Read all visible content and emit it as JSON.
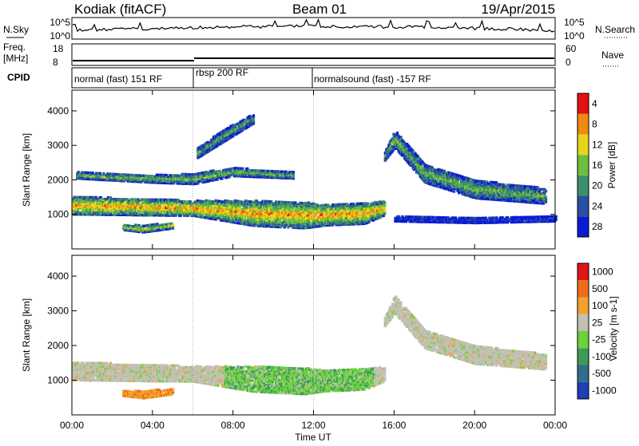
{
  "header": {
    "station": "Kodiak (fitACF)",
    "beam": "Beam 01",
    "date": "19/Apr/2015"
  },
  "top_panels": {
    "nsky_label": "N.Sky",
    "nsearch_label": "N.Search",
    "freq_label_1": "Freq.",
    "freq_label_2": "[MHz]",
    "nave_label": "Nave",
    "cpid_label": "CPID",
    "noise_ticks": [
      "10^5",
      "10^0"
    ],
    "freq_ticks": [
      "18",
      "8"
    ],
    "nave_ticks": [
      "60",
      "0"
    ]
  },
  "cpid_segments": [
    {
      "label": "normal (fast) 151 RF",
      "start_h": 0,
      "end_h": 6
    },
    {
      "label": "rbsp 200 RF",
      "start_h": 6,
      "end_h": 12
    },
    {
      "label": "normalsound (fast) -157 RF",
      "start_h": 12,
      "end_h": 24
    }
  ],
  "chart_data": [
    {
      "type": "heatmap",
      "title": "",
      "xlabel": "Time UT",
      "ylabel": "Slant Range [km]",
      "xlim": [
        0,
        24
      ],
      "ylim": [
        0,
        4600
      ],
      "x_tick_labels": [
        "00:00",
        "04:00",
        "08:00",
        "12:00",
        "16:00",
        "20:00",
        "00:00"
      ],
      "x_tick_hours": [
        0,
        4,
        8,
        12,
        16,
        20,
        24
      ],
      "y_ticks": [
        1000,
        2000,
        3000,
        4000
      ],
      "colorbar_label": "Power [dB]",
      "colorbar_ticks": [
        "4",
        "8",
        "12",
        "16",
        "20",
        "24",
        "28"
      ],
      "colorbar_colors": [
        "#0a1bd8",
        "#2a4ea0",
        "#3a8f6c",
        "#6bbf3a",
        "#e8d31c",
        "#f08a10",
        "#e51010"
      ],
      "echo_bands": [
        {
          "t": [
            0,
            6,
            9,
            11.5,
            12.5,
            14.5,
            15.5
          ],
          "r_center": [
            1280,
            1200,
            1050,
            1000,
            1000,
            1050,
            1200
          ],
          "r_width": [
            260,
            220,
            360,
            380,
            300,
            300,
            200
          ],
          "level": 0.78
        },
        {
          "t": [
            0.2,
            4,
            6,
            8,
            11
          ],
          "r_center": [
            2150,
            2050,
            2050,
            2250,
            2150
          ],
          "r_width": [
            90,
            110,
            150,
            120,
            90
          ],
          "level": 0.5
        },
        {
          "t": [
            6.2,
            7.5,
            9
          ],
          "r_center": [
            2800,
            3300,
            3800
          ],
          "r_width": [
            140,
            170,
            130
          ],
          "level": 0.42
        },
        {
          "t": [
            15.5,
            16,
            17.5,
            20,
            23.5
          ],
          "r_center": [
            2700,
            3200,
            2200,
            1750,
            1550
          ],
          "r_width": [
            120,
            250,
            260,
            260,
            220
          ],
          "level": 0.48
        },
        {
          "t": [
            2.5,
            3.5,
            5
          ],
          "r_center": [
            650,
            600,
            700
          ],
          "r_width": [
            80,
            100,
            80
          ],
          "level": 0.6
        },
        {
          "t": [
            16,
            20,
            24
          ],
          "r_center": [
            900,
            850,
            900
          ],
          "r_width": [
            80,
            80,
            80
          ],
          "level": 0.12
        }
      ]
    },
    {
      "type": "heatmap",
      "title": "",
      "xlabel": "Time UT",
      "ylabel": "Slant Range [km]",
      "xlim": [
        0,
        24
      ],
      "ylim": [
        0,
        4600
      ],
      "x_tick_labels": [
        "00:00",
        "04:00",
        "08:00",
        "12:00",
        "16:00",
        "20:00",
        "00:00"
      ],
      "x_tick_hours": [
        0,
        4,
        8,
        12,
        16,
        20,
        24
      ],
      "y_ticks": [
        1000,
        2000,
        3000,
        4000
      ],
      "colorbar_label": "Velocity [m s-1]",
      "colorbar_ticks": [
        "1000",
        "500",
        "100",
        "25",
        "-25",
        "-100",
        "-500",
        "-1000"
      ],
      "colorbar_colors": [
        "#1e3fb5",
        "#2f6e8c",
        "#3d9a57",
        "#6ad23b",
        "#c2c0b4",
        "#f2a22c",
        "#ee6e1b",
        "#e01616"
      ],
      "echo_bands": [
        {
          "t": [
            0,
            6,
            9,
            11.5,
            12.5,
            14.5,
            15.5
          ],
          "r_center": [
            1280,
            1200,
            1050,
            1000,
            1000,
            1050,
            1200
          ],
          "r_width": [
            260,
            220,
            360,
            380,
            300,
            300,
            200
          ],
          "level": 0.5
        },
        {
          "t": [
            15.5,
            16,
            17.5,
            20,
            23.5
          ],
          "r_center": [
            2700,
            3200,
            2200,
            1750,
            1550
          ],
          "r_width": [
            120,
            250,
            260,
            260,
            220
          ],
          "level": 0.5
        },
        {
          "t": [
            2.5,
            3.5,
            5
          ],
          "r_center": [
            650,
            600,
            700
          ],
          "r_width": [
            80,
            100,
            80
          ],
          "level": 0.3
        }
      ]
    }
  ]
}
